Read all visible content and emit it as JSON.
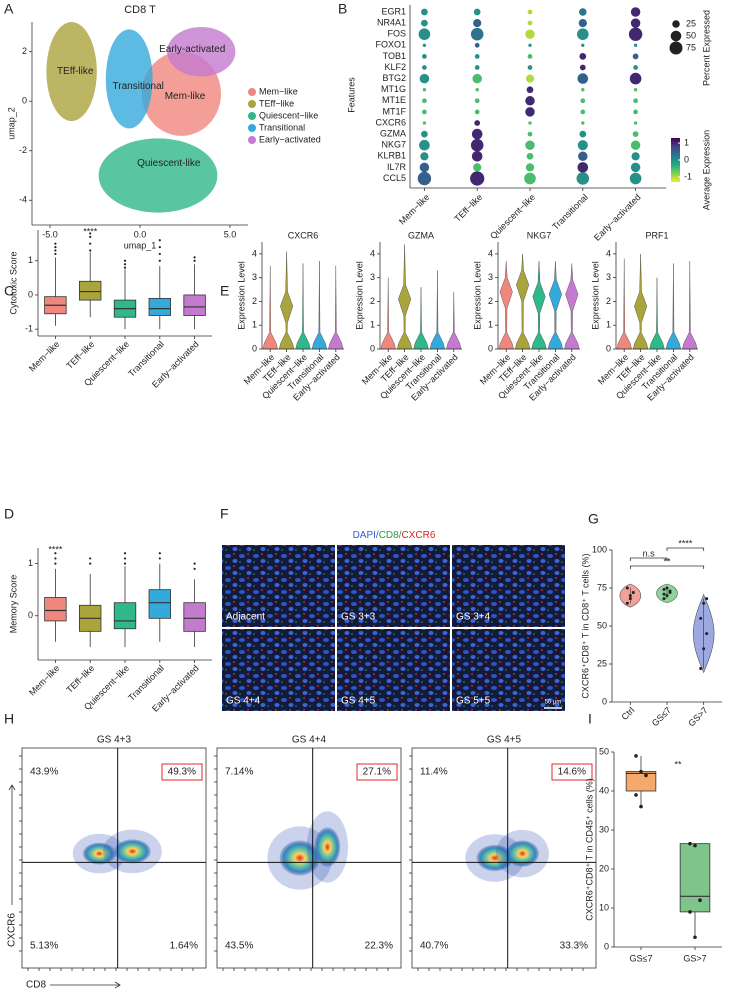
{
  "panel_labels": [
    "A",
    "B",
    "C",
    "D",
    "E",
    "F",
    "G",
    "H",
    "I"
  ],
  "chart_data": [
    {
      "type": "umap",
      "title": "CD8 T",
      "xlabel": "umap_1",
      "ylabel": "umap_2",
      "xlim": [
        -6,
        6
      ],
      "ylim": [
        -5,
        3.2
      ],
      "xticks": [
        {
          "value": -5,
          "label": "-5.0"
        },
        {
          "value": 0,
          "label": "0.0"
        },
        {
          "value": 5,
          "label": "5.0"
        }
      ],
      "yticks": [
        -4,
        -2,
        0,
        2
      ],
      "series": [
        {
          "name": "Mem−like",
          "color": "#F0877E"
        },
        {
          "name": "TEff−like",
          "color": "#A9A43C"
        },
        {
          "name": "Quiescent−like",
          "color": "#2FB889"
        },
        {
          "name": "Transitional",
          "color": "#33A9DC"
        },
        {
          "name": "Early−activated",
          "color": "#C47ACF"
        }
      ],
      "annotations": [
        "TEff-like",
        "Transitional",
        "Early-activated",
        "Mem-like",
        "Quiescent-like"
      ]
    },
    {
      "type": "dotplot",
      "ylabel": "Features",
      "categories": [
        "Mem−like",
        "TEff−like",
        "Quiescent−like",
        "Transitional",
        "Early−activated"
      ],
      "highlight_categories": [
        "TEff−like"
      ],
      "highlight_features": [
        "CXCR6"
      ],
      "highlight_color": "#E8262A",
      "features": [
        "EGR1",
        "NR4A1",
        "FOS",
        "FOXO1",
        "TOB1",
        "KLF2",
        "BTG2",
        "MT1G",
        "MT1E",
        "MT1F",
        "CXCR6",
        "GZMA",
        "NKG7",
        "KLRB1",
        "IL7R",
        "CCL5"
      ],
      "percent": [
        [
          20,
          20,
          10,
          25,
          40
        ],
        [
          20,
          30,
          10,
          30,
          40
        ],
        [
          60,
          70,
          40,
          60,
          80
        ],
        [
          5,
          10,
          5,
          5,
          5
        ],
        [
          10,
          10,
          10,
          20,
          15
        ],
        [
          10,
          10,
          10,
          15,
          10
        ],
        [
          40,
          40,
          30,
          50,
          60
        ],
        [
          5,
          5,
          20,
          5,
          5
        ],
        [
          10,
          10,
          40,
          10,
          10
        ],
        [
          10,
          10,
          40,
          10,
          10
        ],
        [
          5,
          15,
          5,
          5,
          5
        ],
        [
          20,
          50,
          10,
          20,
          15
        ],
        [
          50,
          70,
          40,
          45,
          40
        ],
        [
          30,
          50,
          20,
          40,
          30
        ],
        [
          40,
          30,
          30,
          50,
          40
        ],
        [
          80,
          90,
          60,
          70,
          60
        ]
      ],
      "avg": [
        [
          0,
          0,
          -1,
          0.3,
          1
        ],
        [
          0,
          0.5,
          -1,
          0.5,
          1
        ],
        [
          0,
          0.3,
          -1,
          0,
          1
        ],
        [
          0,
          0.5,
          0,
          0,
          0
        ],
        [
          0,
          0,
          -0.5,
          1,
          0.5
        ],
        [
          0,
          0,
          0,
          1,
          0
        ],
        [
          0,
          -0.5,
          -1,
          0.5,
          1
        ],
        [
          -0.5,
          -0.5,
          1,
          -0.5,
          -0.5
        ],
        [
          -0.5,
          -0.5,
          1,
          -0.5,
          -0.5
        ],
        [
          -0.5,
          -0.5,
          1,
          -0.5,
          -0.5
        ],
        [
          -0.5,
          1,
          -0.5,
          -0.5,
          -0.5
        ],
        [
          0,
          1,
          -0.5,
          0,
          -0.5
        ],
        [
          0,
          1,
          -0.5,
          0,
          -0.5
        ],
        [
          0,
          1,
          -0.5,
          0.5,
          0
        ],
        [
          0.5,
          -0.5,
          -0.5,
          1,
          0
        ],
        [
          0.5,
          1,
          -0.5,
          0,
          0
        ]
      ],
      "size_legend_title": "Percent Expressed",
      "size_legend": [
        25,
        50,
        75
      ],
      "color_legend_title": "Average Expression",
      "color_ticks": [
        1,
        0,
        -1
      ],
      "clim": [
        -1.3,
        1.3
      ],
      "colorscale": [
        "#FDE725",
        "#7AD151",
        "#22A884",
        "#2A788E",
        "#414487",
        "#440154"
      ]
    },
    {
      "type": "box",
      "ylabel": "Cytotoxic Score",
      "categories": [
        "Mem−like",
        "TEff−like",
        "Quiescent−like",
        "Transitional",
        "Early−activated"
      ],
      "colors": [
        "#F0877E",
        "#A9A43C",
        "#2FB889",
        "#33A9DC",
        "#C47ACF"
      ],
      "ylim": [
        -1.2,
        1.9
      ],
      "yticks": [
        -1,
        0,
        1
      ],
      "boxes": [
        {
          "min": -0.9,
          "q1": -0.55,
          "median": -0.3,
          "q3": -0.05,
          "max": 1.1
        },
        {
          "min": -0.65,
          "q1": -0.15,
          "median": 0.1,
          "q3": 0.4,
          "max": 1.25
        },
        {
          "min": -1.0,
          "q1": -0.65,
          "median": -0.4,
          "q3": -0.15,
          "max": 0.75
        },
        {
          "min": -1.0,
          "q1": -0.6,
          "median": -0.4,
          "q3": -0.1,
          "max": 0.85
        },
        {
          "min": -1.0,
          "q1": -0.6,
          "median": -0.35,
          "q3": 0.0,
          "max": 0.9
        }
      ],
      "outliers": [
        [
          1.2,
          1.3,
          1.4,
          1.5
        ],
        [
          1.3,
          1.5,
          1.7,
          1.8
        ],
        [
          0.8,
          0.9,
          1.0
        ],
        [
          1.0,
          1.2,
          1.4,
          1.6
        ],
        [
          1.0,
          1.1
        ]
      ],
      "annotations": [
        {
          "text": "****",
          "category": "TEff−like"
        }
      ]
    },
    {
      "type": "box",
      "ylabel": "Memory Score",
      "categories": [
        "Mem−like",
        "TEff−like",
        "Quiescent−like",
        "Transitional",
        "Early−activated"
      ],
      "colors": [
        "#F0877E",
        "#A9A43C",
        "#2FB889",
        "#33A9DC",
        "#C47ACF"
      ],
      "ylim": [
        -0.85,
        1.3
      ],
      "yticks": [
        0,
        1
      ],
      "boxes": [
        {
          "min": -0.5,
          "q1": -0.1,
          "median": 0.1,
          "q3": 0.35,
          "max": 0.9
        },
        {
          "min": -0.6,
          "q1": -0.3,
          "median": -0.05,
          "q3": 0.2,
          "max": 0.8
        },
        {
          "min": -0.6,
          "q1": -0.25,
          "median": -0.1,
          "q3": 0.25,
          "max": 0.95
        },
        {
          "min": -0.5,
          "q1": -0.05,
          "median": 0.25,
          "q3": 0.5,
          "max": 1.0
        },
        {
          "min": -0.6,
          "q1": -0.3,
          "median": -0.05,
          "q3": 0.25,
          "max": 0.7
        }
      ],
      "outliers": [
        [
          1.0,
          1.1,
          1.2
        ],
        [
          1.0,
          1.1
        ],
        [
          1.0,
          1.1,
          1.2
        ],
        [
          1.1,
          1.2
        ],
        [
          0.9,
          1.0
        ]
      ],
      "annotations": [
        {
          "text": "****",
          "category": "Mem−like"
        }
      ]
    },
    {
      "type": "violin",
      "ylabel": "Expression Level",
      "categories": [
        "Mem−like",
        "TEff−like",
        "Quiescent−like",
        "Transitional",
        "Early−activated"
      ],
      "colors": [
        "#F0877E",
        "#A9A43C",
        "#2FB889",
        "#33A9DC",
        "#C47ACF"
      ],
      "ylim": [
        0,
        4.5
      ],
      "yticks": [
        0,
        1,
        2,
        3,
        4
      ],
      "panels": [
        {
          "title": "CXCR6",
          "max": [
            3.5,
            4.1,
            3.6,
            3.7,
            3.5
          ],
          "upper_peak": [
            null,
            1.8,
            null,
            null,
            null
          ]
        },
        {
          "title": "GZMA",
          "max": [
            3.0,
            4.4,
            2.6,
            3.3,
            2.4
          ],
          "upper_peak": [
            null,
            2.1,
            null,
            null,
            null
          ]
        },
        {
          "title": "NKG7",
          "max": [
            3.7,
            4.0,
            3.7,
            3.7,
            3.6
          ],
          "upper_peak": [
            2.4,
            2.7,
            2.2,
            2.3,
            2.3
          ]
        },
        {
          "title": "PRF1",
          "max": [
            3.8,
            4.0,
            3.0,
            3.6,
            3.7
          ],
          "upper_peak": [
            null,
            1.8,
            null,
            null,
            null
          ]
        }
      ]
    },
    {
      "type": "image_grid",
      "title_parts": [
        {
          "text": "DAPI/",
          "color": "#2F5FD0"
        },
        {
          "text": "CD8/",
          "color": "#22A03A"
        },
        {
          "text": "CXCR6",
          "color": "#E02020"
        }
      ],
      "labels": [
        "Adjacent",
        "GS 3+3",
        "GS 3+4",
        "GS 4+4",
        "GS 4+5",
        "GS 5+5"
      ],
      "scale_bar": "50 μm"
    },
    {
      "type": "violin_points",
      "ylabel": "CXCR6⁺CD8⁺ T in CD8⁺ T cells (%)",
      "categories": [
        "Ctrl",
        "GS≤7",
        "GS>7"
      ],
      "colors": [
        "#F4A09A",
        "#8FD39C",
        "#9DAAE2"
      ],
      "ylim": [
        0,
        100
      ],
      "yticks": [
        0,
        25,
        50,
        75,
        100
      ],
      "points": [
        [
          65,
          68,
          72,
          75,
          70
        ],
        [
          68,
          70,
          72,
          74,
          75,
          73,
          71
        ],
        [
          22,
          35,
          45,
          55,
          65,
          68
        ]
      ],
      "comparisons": [
        {
          "label": "n.s",
          "from": "Ctrl",
          "to": "GS≤7"
        },
        {
          "label": "**",
          "from": "Ctrl",
          "to": "GS>7"
        },
        {
          "label": "****",
          "from": "GS≤7",
          "to": "GS>7"
        }
      ]
    },
    {
      "type": "flow",
      "xlabel": "CD8",
      "ylabel": "CXCR6",
      "highlight_color": "#E8262A",
      "panels": [
        {
          "title": "GS 4+3",
          "quadrants": [
            43.9,
            49.3,
            5.13,
            1.64
          ],
          "quadrant_labels": [
            "43.9%",
            "49.3%",
            "5.13%",
            "1.64%"
          ]
        },
        {
          "title": "GS 4+4",
          "quadrants": [
            7.14,
            27.1,
            43.5,
            22.3
          ],
          "quadrant_labels": [
            "7.14%",
            "27.1%",
            "43.5%",
            "22.3%"
          ]
        },
        {
          "title": "GS 4+5",
          "quadrants": [
            11.4,
            14.6,
            40.7,
            33.3
          ],
          "quadrant_labels": [
            "11.4%",
            "14.6%",
            "40.7%",
            "33.3%"
          ]
        }
      ]
    },
    {
      "type": "box_points",
      "ylabel": "CXCR6⁺CD8⁺ T in CD45⁺ cells (%)",
      "categories": [
        "GS≤7",
        "GS>7"
      ],
      "colors": [
        "#F5A96B",
        "#7FC48A"
      ],
      "ylim": [
        0,
        50
      ],
      "yticks": [
        0,
        10,
        20,
        30,
        40,
        50
      ],
      "boxes": [
        {
          "min": 36,
          "q1": 40,
          "median": 44.5,
          "q3": 45,
          "max": 49
        },
        {
          "min": 2.5,
          "q1": 9,
          "median": 13,
          "q3": 26.5,
          "max": 26.5
        }
      ],
      "points": [
        [
          49,
          45,
          44,
          39,
          36
        ],
        [
          26.5,
          26,
          12,
          9,
          2.5
        ]
      ],
      "annotation": "**"
    }
  ]
}
